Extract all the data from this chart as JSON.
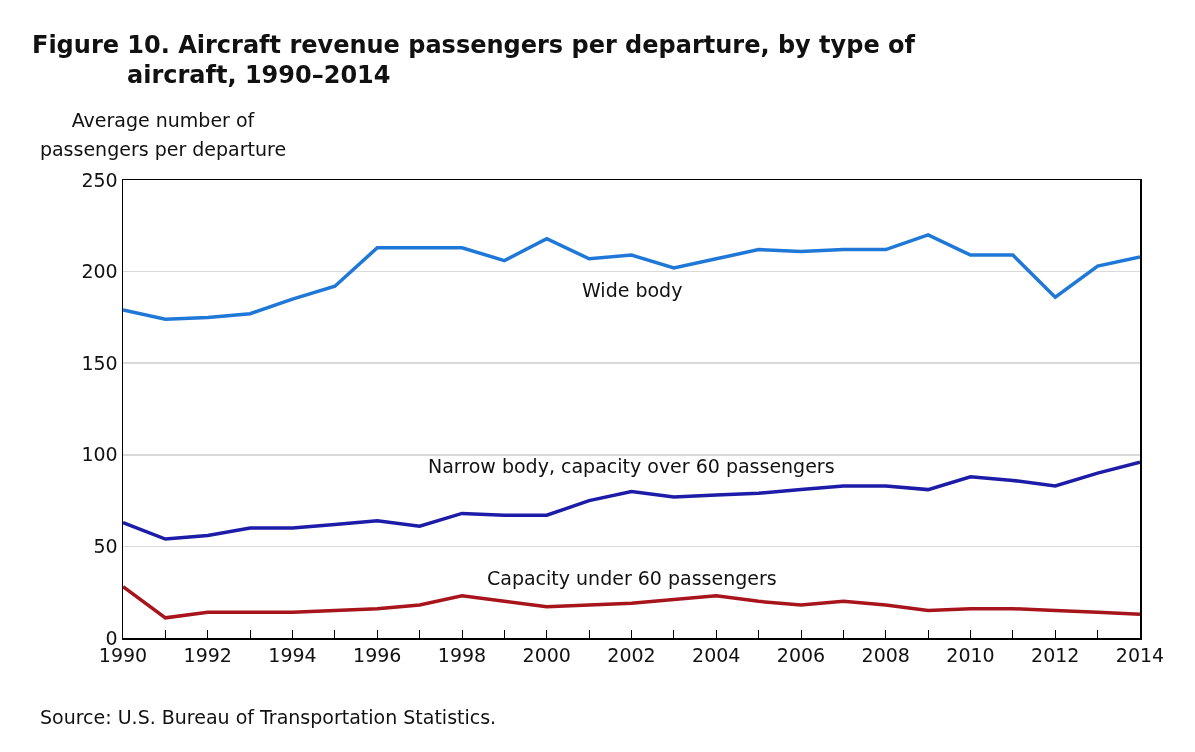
{
  "chart_data": {
    "type": "line",
    "title": "Figure 10. Aircraft revenue passengers per departure, by type of aircraft, 1990–2014",
    "ylabel": "Average number of passengers per departure",
    "annotations": [
      "Source: U.S. Bureau of Transportation Statistics."
    ],
    "x": [
      1990,
      1991,
      1992,
      1993,
      1994,
      1995,
      1996,
      1997,
      1998,
      1999,
      2000,
      2001,
      2002,
      2003,
      2004,
      2005,
      2006,
      2007,
      2008,
      2009,
      2010,
      2011,
      2012,
      2013,
      2014
    ],
    "series": [
      {
        "name": "Wide body",
        "color": "#1f78d8",
        "values": [
          179,
          174,
          175,
          177,
          185,
          192,
          213,
          213,
          213,
          206,
          218,
          207,
          209,
          202,
          207,
          212,
          211,
          212,
          212,
          220,
          209,
          209,
          186,
          203,
          208
        ]
      },
      {
        "name": "Narrow body, capacity over 60 passengers",
        "color": "#1c1ca8",
        "values": [
          63,
          54,
          56,
          60,
          60,
          62,
          64,
          61,
          68,
          67,
          67,
          75,
          80,
          77,
          78,
          79,
          81,
          83,
          83,
          81,
          88,
          86,
          83,
          90,
          96
        ]
      },
      {
        "name": "Capacity under 60 passengers",
        "color": "#a8141c",
        "values": [
          28,
          11,
          14,
          14,
          14,
          15,
          16,
          18,
          23,
          20,
          17,
          18,
          19,
          21,
          23,
          20,
          18,
          20,
          18,
          15,
          16,
          16,
          15,
          14,
          13
        ]
      }
    ],
    "xlim": [
      1990,
      2014
    ],
    "xticks": [
      1990,
      {
        "value": 1991,
        "label": null
      },
      1992,
      {
        "value": 1993,
        "label": null
      },
      1994,
      {
        "value": 1995,
        "label": null
      },
      1996,
      {
        "value": 1997,
        "label": null
      },
      1998,
      {
        "value": 1999,
        "label": null
      },
      2000,
      {
        "value": 2001,
        "label": null
      },
      2002,
      {
        "value": 2003,
        "label": null
      },
      2004,
      {
        "value": 2005,
        "label": null
      },
      2006,
      {
        "value": 2007,
        "label": null
      },
      2008,
      {
        "value": 2009,
        "label": null
      },
      2010,
      {
        "value": 2011,
        "label": null
      },
      2012,
      {
        "value": 2013,
        "label": null
      },
      2014
    ],
    "ylim": [
      0,
      250
    ],
    "yticks": [
      0,
      50,
      100,
      150,
      200,
      250
    ],
    "grid": "y",
    "legend": false,
    "marker": "none",
    "line_style": "solid"
  }
}
